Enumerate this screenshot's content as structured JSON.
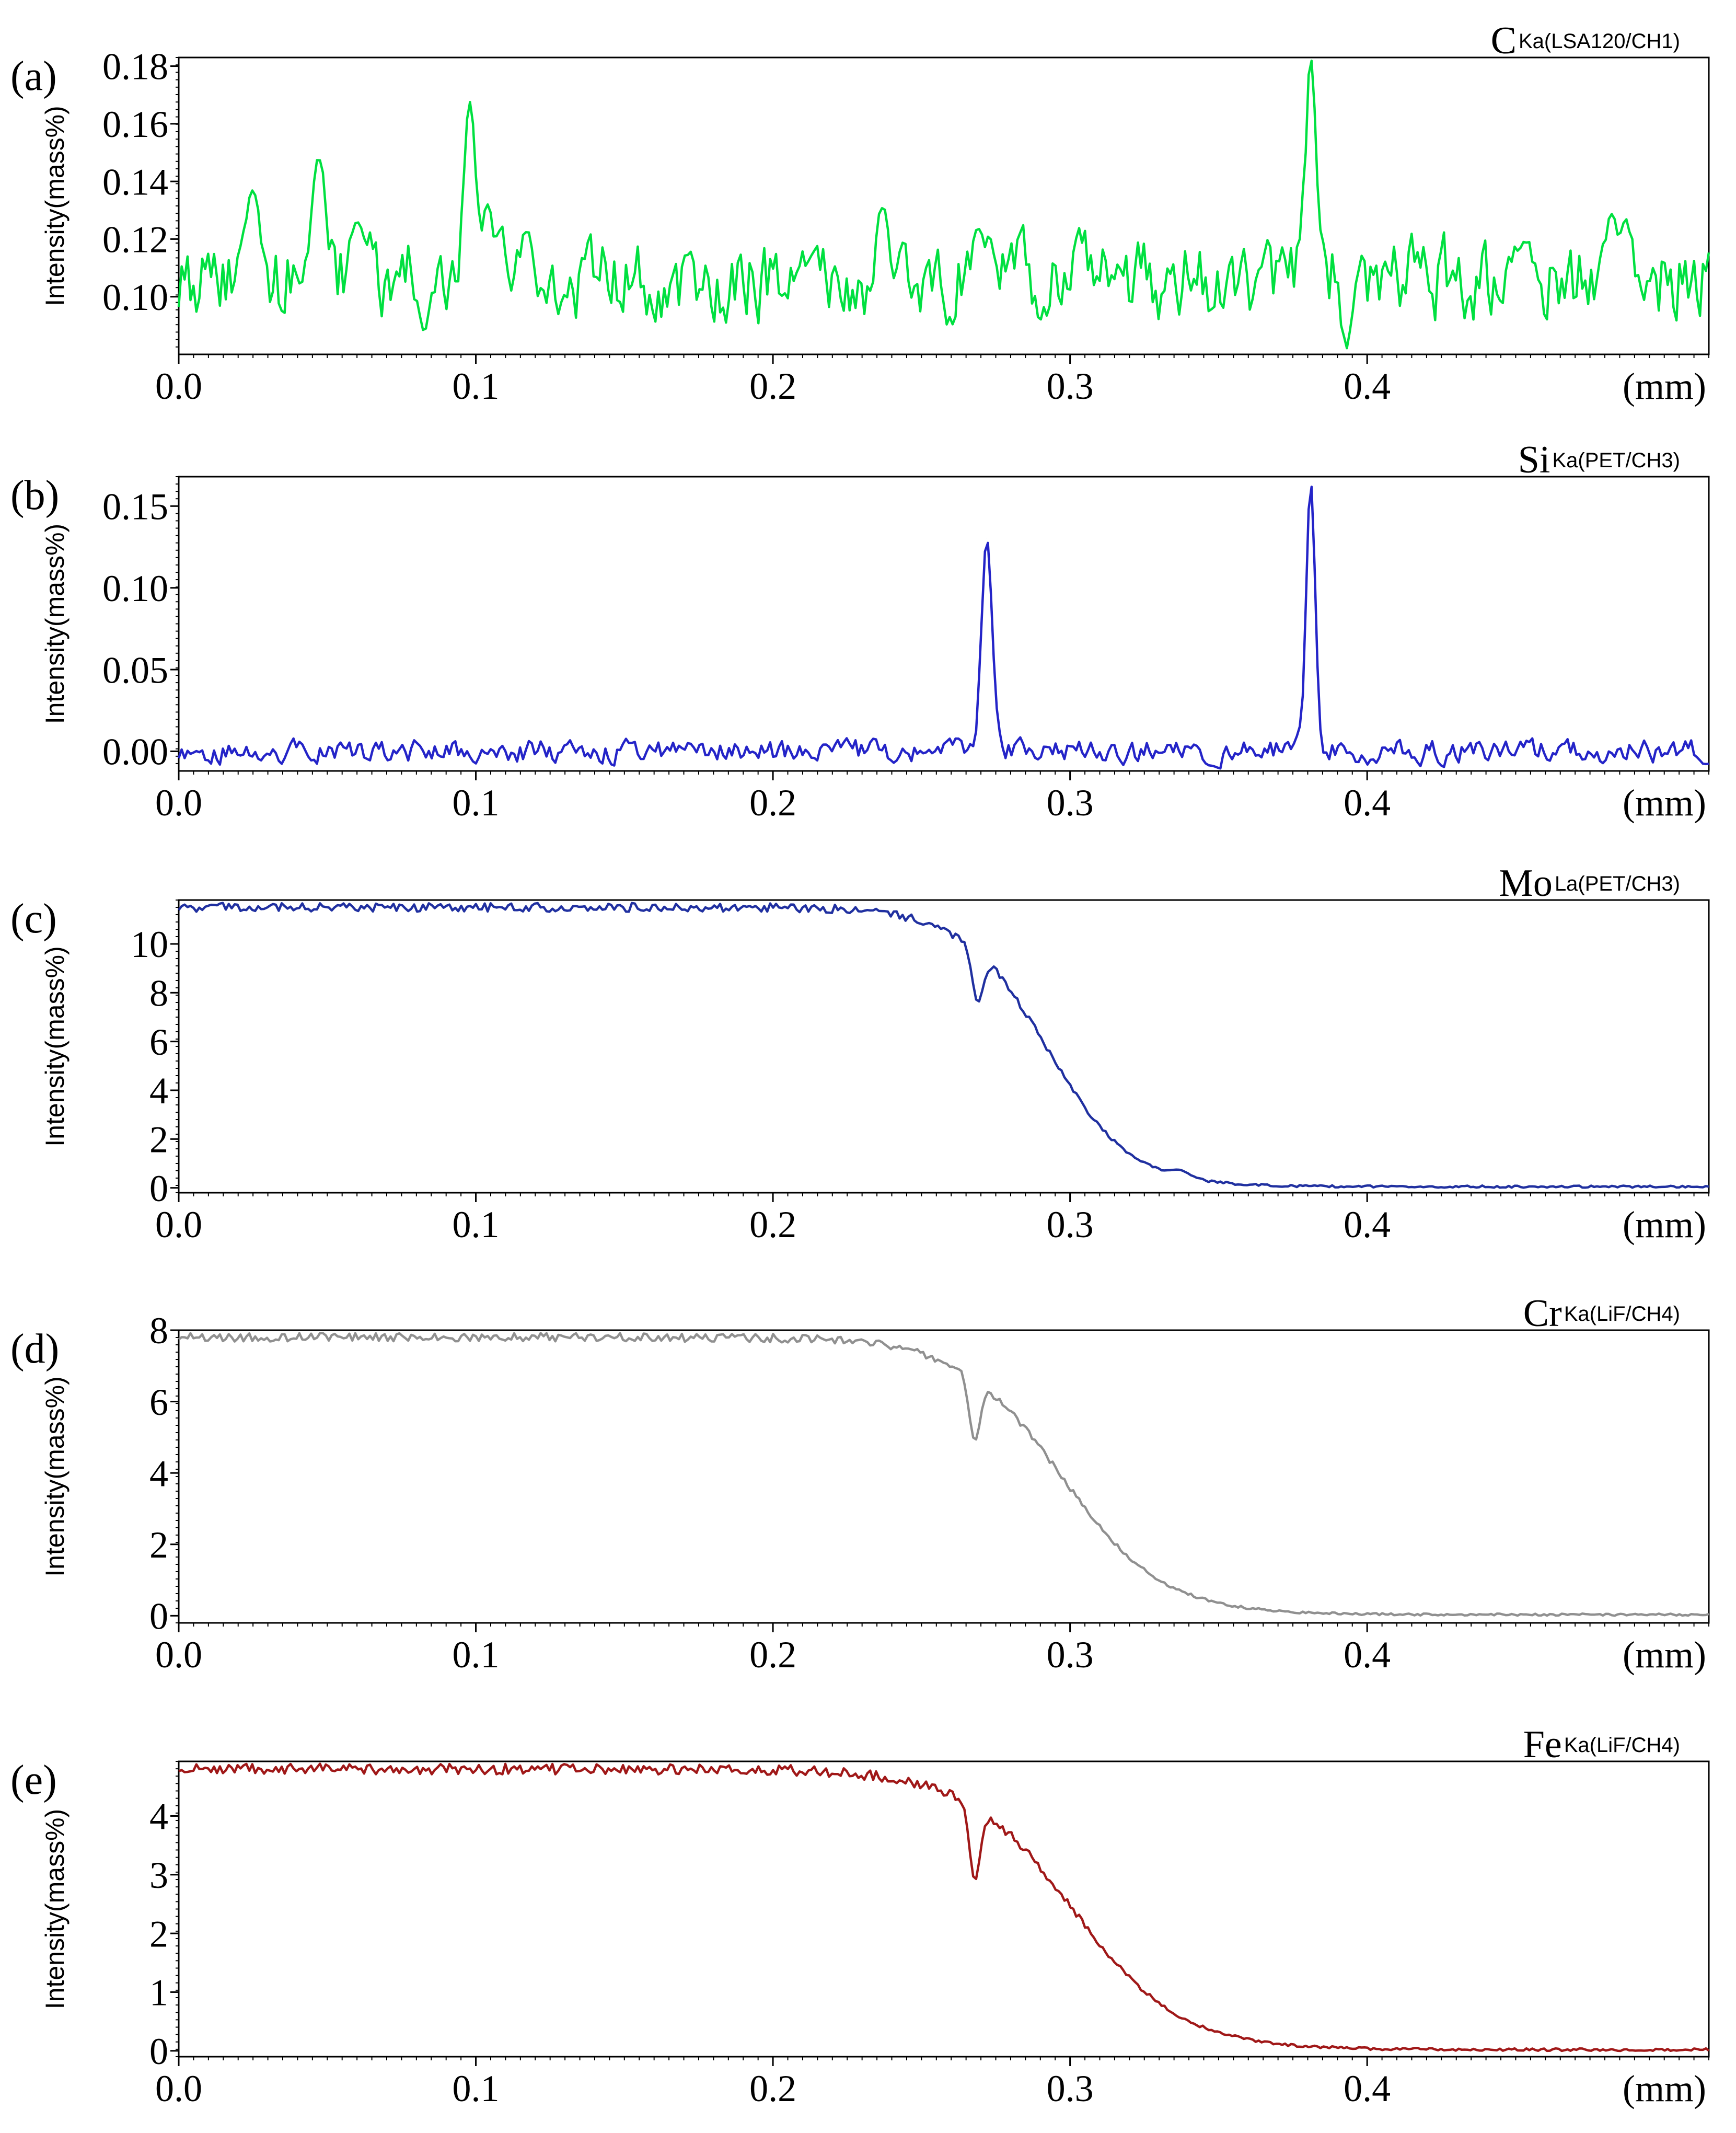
{
  "chart_data": [
    {
      "type": "line",
      "panel_label": "(a)",
      "element": "C",
      "element_sub": "Ka(LSA120/CH1)",
      "ylabel": "Intensity(mass%)",
      "x_unit": "(mm)",
      "xlim": [
        0.0,
        0.515
      ],
      "ylim": [
        0.08,
        0.183
      ],
      "x_ticks": [
        "0.0",
        "0.1",
        "0.2",
        "0.3",
        "0.4"
      ],
      "y_ticks": [
        "0.10",
        "0.12",
        "0.14",
        "0.16",
        "0.18"
      ],
      "y_tick_values": [
        0.1,
        0.12,
        0.14,
        0.16,
        0.18
      ],
      "color": "#00e040",
      "baseline": {
        "kind": "noise",
        "level": 0.106,
        "amp": 0.012
      },
      "peaks": [
        {
          "x": 0.025,
          "y": 0.137,
          "w": 0.0025
        },
        {
          "x": 0.047,
          "y": 0.148,
          "w": 0.0025
        },
        {
          "x": 0.06,
          "y": 0.126,
          "w": 0.002
        },
        {
          "x": 0.098,
          "y": 0.168,
          "w": 0.002
        },
        {
          "x": 0.104,
          "y": 0.132,
          "w": 0.002
        },
        {
          "x": 0.237,
          "y": 0.131,
          "w": 0.002
        },
        {
          "x": 0.269,
          "y": 0.124,
          "w": 0.002
        },
        {
          "x": 0.381,
          "y": 0.183,
          "w": 0.0016
        },
        {
          "x": 0.393,
          "y": 0.082,
          "w": 0.0015
        },
        {
          "x": 0.453,
          "y": 0.119,
          "w": 0.002
        },
        {
          "x": 0.482,
          "y": 0.129,
          "w": 0.002
        },
        {
          "x": 0.487,
          "y": 0.127,
          "w": 0.002
        }
      ]
    },
    {
      "type": "line",
      "panel_label": "(b)",
      "element": "Si",
      "element_sub": "Ka(PET/CH3)",
      "ylabel": "Intensity(mass%)",
      "x_unit": "(mm)",
      "xlim": [
        0.0,
        0.515
      ],
      "ylim": [
        -0.012,
        0.168
      ],
      "x_ticks": [
        "0.0",
        "0.1",
        "0.2",
        "0.3",
        "0.4"
      ],
      "y_ticks": [
        "0.00",
        "0.05",
        "0.10",
        "0.15"
      ],
      "y_tick_values": [
        0.0,
        0.05,
        0.1,
        0.15
      ],
      "color": "#2424c8",
      "baseline": {
        "kind": "noise",
        "level": 0.0,
        "amp": 0.006
      },
      "peaks": [
        {
          "x": 0.272,
          "y": 0.13,
          "w": 0.0018
        },
        {
          "x": 0.381,
          "y": 0.165,
          "w": 0.0015
        }
      ]
    },
    {
      "type": "line",
      "panel_label": "(c)",
      "element": "Mo",
      "element_sub": "La(PET/CH3)",
      "ylabel": "Intensity(mass%)",
      "x_unit": "(mm)",
      "xlim": [
        0.0,
        0.515
      ],
      "ylim": [
        -0.2,
        11.8
      ],
      "x_ticks": [
        "0.0",
        "0.1",
        "0.2",
        "0.3",
        "0.4"
      ],
      "y_ticks": [
        "0",
        "2",
        "4",
        "6",
        "8",
        "10"
      ],
      "y_tick_values": [
        0,
        2,
        4,
        6,
        8,
        10
      ],
      "color": "#2030a0",
      "baseline": {
        "kind": "sigmoid",
        "high": 11.5,
        "low": 0.05,
        "center": 0.292,
        "width": 0.014,
        "amp": 0.18
      },
      "peaks": [
        {
          "x": 0.269,
          "y": 7.6,
          "w": 0.0018
        },
        {
          "x": 0.336,
          "y": 0.75,
          "w": 0.003
        }
      ]
    },
    {
      "type": "line",
      "panel_label": "(d)",
      "element": "Cr",
      "element_sub": "Ka(LiF/CH4)",
      "ylabel": "Intensity(mass%)",
      "x_unit": "(mm)",
      "xlim": [
        0.0,
        0.515
      ],
      "ylim": [
        -0.2,
        8.0
      ],
      "x_ticks": [
        "0.0",
        "0.1",
        "0.2",
        "0.3",
        "0.4"
      ],
      "y_ticks": [
        "0",
        "2",
        "4",
        "6",
        "8"
      ],
      "y_tick_values": [
        0,
        2,
        4,
        6,
        8
      ],
      "color": "#909090",
      "baseline": {
        "kind": "sigmoid",
        "high": 7.8,
        "low": 0.03,
        "center": 0.297,
        "width": 0.017,
        "amp": 0.12
      },
      "peaks": [
        {
          "x": 0.268,
          "y": 4.9,
          "w": 0.0018
        }
      ]
    },
    {
      "type": "line",
      "panel_label": "(e)",
      "element": "Fe",
      "element_sub": "Ka(LiF/CH4)",
      "ylabel": "Intensity(mass%)",
      "x_unit": "(mm)",
      "xlim": [
        0.0,
        0.515
      ],
      "ylim": [
        -0.1,
        4.93
      ],
      "x_ticks": [
        "0.0",
        "0.1",
        "0.2",
        "0.3",
        "0.4"
      ],
      "y_ticks": [
        "0",
        "1",
        "2",
        "3",
        "4"
      ],
      "y_tick_values": [
        0,
        1,
        2,
        3,
        4
      ],
      "color": "#a01818",
      "baseline": {
        "kind": "sigmoid",
        "high": 4.8,
        "low": 0.02,
        "center": 0.301,
        "width": 0.018,
        "amp": 0.09
      },
      "peaks": [
        {
          "x": 0.268,
          "y": 2.9,
          "w": 0.0018
        }
      ]
    }
  ]
}
